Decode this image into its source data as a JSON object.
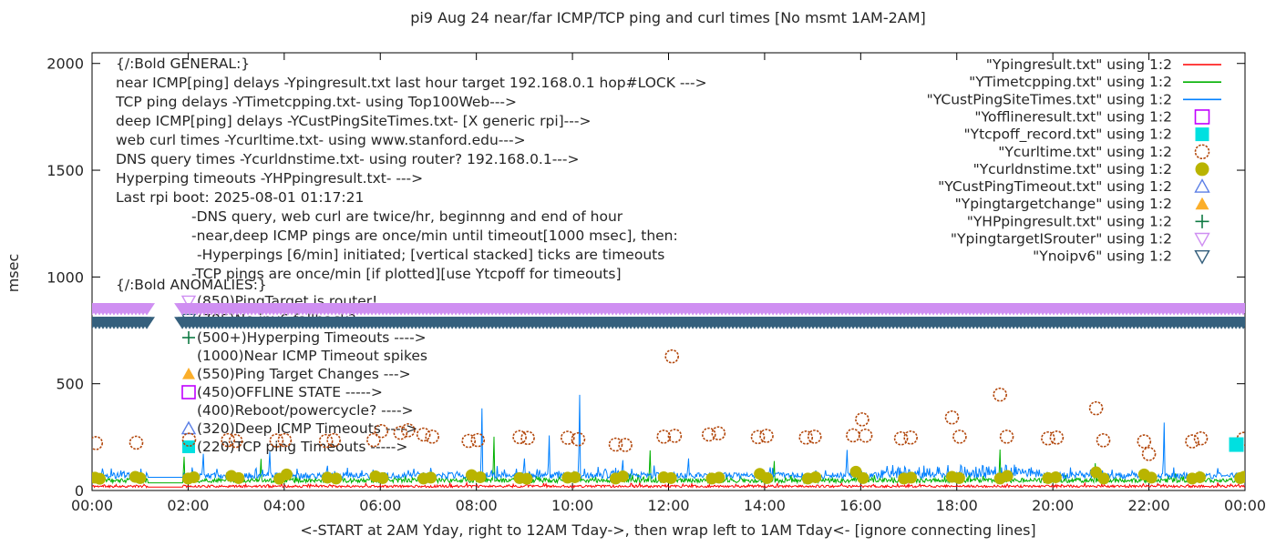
{
  "chart_data": {
    "type": "mixed-line-scatter",
    "title": "pi9 Aug 24  near/far ICMP/TCP ping and curl times [No msmt 1AM-2AM]",
    "xlabel": "<-START at 2AM Yday, right to 12AM Tday->, then wrap left to 1AM Tday<- [ignore connecting lines]",
    "ylabel": "msec",
    "x_range_hours": [
      0,
      24
    ],
    "y_range_msec": [
      0,
      2050
    ],
    "grid": false,
    "x_ticks": [
      {
        "hour": 0,
        "label": "00:00"
      },
      {
        "hour": 2,
        "label": "02:00"
      },
      {
        "hour": 4,
        "label": "04:00"
      },
      {
        "hour": 6,
        "label": "06:00"
      },
      {
        "hour": 8,
        "label": "08:00"
      },
      {
        "hour": 10,
        "label": "10:00"
      },
      {
        "hour": 12,
        "label": "12:00"
      },
      {
        "hour": 14,
        "label": "14:00"
      },
      {
        "hour": 16,
        "label": "16:00"
      },
      {
        "hour": 18,
        "label": "18:00"
      },
      {
        "hour": 20,
        "label": "20:00"
      },
      {
        "hour": 22,
        "label": "22:00"
      },
      {
        "hour": 24,
        "label": "00:00"
      }
    ],
    "y_ticks": [
      0,
      500,
      1000,
      1500,
      2000
    ],
    "no_measurement_window_hours": [
      1.15,
      1.9
    ],
    "legend_position": "top-right",
    "legend": [
      {
        "label": "\"Ypingresult.txt\" using 1:2",
        "marker": "line",
        "color": "#ff0000"
      },
      {
        "label": "\"YTimetcpping.txt\" using 1:2",
        "marker": "line",
        "color": "#00b000"
      },
      {
        "label": "\"YCustPingSiteTimes.txt\" using 1:2",
        "marker": "line",
        "color": "#0080ff"
      },
      {
        "label": "\"Yofflineresult.txt\" using 1:2",
        "marker": "square-open",
        "color": "#c000ff"
      },
      {
        "label": "\"Ytcpoff_record.txt\" using 1:2",
        "marker": "square-filled",
        "color": "#00e0e0"
      },
      {
        "label": "\"Ycurltime.txt\" using 1:2",
        "marker": "circle-open",
        "color": "#b2460a"
      },
      {
        "label": "\"Ycurldnstime.txt\" using 1:2",
        "marker": "circle-filled",
        "color": "#b9b400"
      },
      {
        "label": "\"YCustPingTimeout.txt\" using 1:2",
        "marker": "tri-up-open",
        "color": "#5b7fe6"
      },
      {
        "label": "\"Ypingtargetchange\" using 1:2",
        "marker": "tri-up-filled",
        "color": "#fbae2a"
      },
      {
        "label": "\"YHPpingresult.txt\" using 1:2",
        "marker": "plus",
        "color": "#0e7a43"
      },
      {
        "label": "\"YpingtargetISrouter\" using 1:2",
        "marker": "tri-down-open",
        "color": "#cf8ff2"
      },
      {
        "label": "\"Ynoipv6\" using 1:2",
        "marker": "tri-down-open",
        "color": "#35607d"
      }
    ],
    "annotations": {
      "general_header": "{/:Bold GENERAL:}",
      "general": [
        "near ICMP[ping] delays -Ypingresult.txt last hour target 192.168.0.1 hop#LOCK --->",
        "TCP ping delays -YTimetcpping.txt- using Top100Web--->",
        "deep ICMP[ping] delays -YCustPingSiteTimes.txt- [X generic rpi]--->",
        "web curl times -Ycurltime.txt- using www.stanford.edu--->",
        "DNS query times -Ycurldnstime.txt- using router? 192.168.0.1--->",
        "Hyperping timeouts -YHPpingresult.txt- --->",
        "Last rpi boot: 2025-08-01 01:17:21"
      ],
      "notes": [
        "-DNS query, web curl are twice/hr, beginnng and end of hour",
        "-near,deep ICMP pings are once/min until timeout[1000 msec], then:",
        " -Hyperpings [6/min] initiated; [vertical stacked] ticks are timeouts",
        "-TCP pings are once/min [if plotted][use Ytcpoff for timeouts]"
      ],
      "anomalies_header": "{/:Bold ANOMALIES:}",
      "anomalies": [
        {
          "marker": "tri-down-open",
          "color": "#cf8ff2",
          "text": "(850)PingTarget is router!"
        },
        {
          "marker": "tri-down-open",
          "color": "#35607d",
          "text": "(785)No ipv6 fallback?"
        },
        {
          "marker": "plus",
          "color": "#0e7a43",
          "text": "(500+)Hyperping Timeouts ---->"
        },
        {
          "marker": "none",
          "color": "",
          "text": "(1000)Near ICMP Timeout spikes"
        },
        {
          "marker": "tri-up-filled",
          "color": "#fbae2a",
          "text": "(550)Ping Target Changes --->"
        },
        {
          "marker": "square-open",
          "color": "#c000ff",
          "text": "(450)OFFLINE STATE ----->"
        },
        {
          "marker": "none",
          "color": "",
          "text": "(400)Reboot/powercycle? ---->"
        },
        {
          "marker": "tri-up-open",
          "color": "#5b7fe6",
          "text": "(320)Deep ICMP Timeouts ---->"
        },
        {
          "marker": "square-filled",
          "color": "#00e0e0",
          "text": "(220)TCP ping Timeouts ----->"
        }
      ]
    },
    "series": [
      {
        "name": "Ypingresult.txt",
        "type": "noisy-line",
        "color": "#ff0000",
        "seed": 11,
        "baseline_msec": 18,
        "noise_msec": 7,
        "gap_value_msec": 16,
        "spikes": []
      },
      {
        "name": "YTimetcpping.txt",
        "type": "noisy-line",
        "color": "#00b000",
        "seed": 23,
        "baseline_msec": 44,
        "noise_msec": 13,
        "gap_value_msec": 36,
        "spikes": [
          [
            1.92,
            158
          ],
          [
            3.52,
            148
          ],
          [
            8.36,
            252
          ],
          [
            11.62,
            188
          ],
          [
            14.2,
            138
          ],
          [
            18.9,
            192
          ],
          [
            20.88,
            128
          ]
        ]
      },
      {
        "name": "YCustPingSiteTimes.txt",
        "type": "noisy-line",
        "color": "#0080ff",
        "seed": 47,
        "baseline_msec": 66,
        "noise_msec": 18,
        "gap_value_msec": 62,
        "busy_window": [
          16.4,
          19.7,
          2.3
        ],
        "spikes": [
          [
            2.32,
            172
          ],
          [
            3.7,
            182
          ],
          [
            4.9,
            116
          ],
          [
            8.12,
            385
          ],
          [
            9.0,
            150
          ],
          [
            9.52,
            258
          ],
          [
            10.15,
            448
          ],
          [
            11.05,
            142
          ],
          [
            12.42,
            150
          ],
          [
            15.72,
            190
          ],
          [
            22.32,
            318
          ]
        ]
      },
      {
        "name": "Ycurltime.txt",
        "type": "scatter",
        "marker": "circle-open",
        "color": "#b2460a",
        "size": 7,
        "points": [
          [
            0.08,
            222
          ],
          [
            0.92,
            224
          ],
          [
            2.02,
            238
          ],
          [
            2.83,
            236
          ],
          [
            2.99,
            232
          ],
          [
            3.84,
            234
          ],
          [
            4.01,
            236
          ],
          [
            4.87,
            232
          ],
          [
            5.03,
            236
          ],
          [
            5.86,
            236
          ],
          [
            6.02,
            278
          ],
          [
            6.42,
            270
          ],
          [
            6.58,
            282
          ],
          [
            6.9,
            262
          ],
          [
            7.08,
            252
          ],
          [
            7.84,
            232
          ],
          [
            8.03,
            236
          ],
          [
            8.9,
            250
          ],
          [
            9.07,
            246
          ],
          [
            9.9,
            247
          ],
          [
            10.12,
            240
          ],
          [
            10.9,
            215
          ],
          [
            11.1,
            213
          ],
          [
            11.9,
            252
          ],
          [
            12.07,
            628
          ],
          [
            12.13,
            256
          ],
          [
            12.84,
            262
          ],
          [
            13.04,
            268
          ],
          [
            13.86,
            250
          ],
          [
            14.04,
            256
          ],
          [
            14.86,
            248
          ],
          [
            15.04,
            252
          ],
          [
            15.84,
            258
          ],
          [
            16.03,
            333
          ],
          [
            16.1,
            257
          ],
          [
            16.84,
            244
          ],
          [
            17.04,
            248
          ],
          [
            17.9,
            342
          ],
          [
            18.06,
            252
          ],
          [
            18.9,
            449
          ],
          [
            19.04,
            252
          ],
          [
            19.9,
            244
          ],
          [
            20.08,
            248
          ],
          [
            20.9,
            385
          ],
          [
            21.05,
            235
          ],
          [
            21.9,
            230
          ],
          [
            22.0,
            171
          ],
          [
            22.9,
            230
          ],
          [
            23.08,
            244
          ],
          [
            23.97,
            242
          ]
        ]
      },
      {
        "name": "Ycurldnstime.txt",
        "type": "scatter",
        "marker": "circle-filled",
        "color": "#b9b400",
        "size": 6.5,
        "points": [
          [
            0.06,
            60
          ],
          [
            0.16,
            55
          ],
          [
            0.9,
            64
          ],
          [
            1.0,
            58
          ],
          [
            2.0,
            56
          ],
          [
            2.12,
            62
          ],
          [
            2.9,
            68
          ],
          [
            3.05,
            58
          ],
          [
            3.9,
            55
          ],
          [
            4.05,
            75
          ],
          [
            4.9,
            60
          ],
          [
            5.08,
            56
          ],
          [
            5.9,
            66
          ],
          [
            6.05,
            58
          ],
          [
            6.9,
            56
          ],
          [
            7.05,
            60
          ],
          [
            7.9,
            72
          ],
          [
            8.08,
            62
          ],
          [
            8.9,
            58
          ],
          [
            9.05,
            55
          ],
          [
            9.9,
            60
          ],
          [
            10.05,
            62
          ],
          [
            10.9,
            56
          ],
          [
            11.05,
            66
          ],
          [
            11.9,
            62
          ],
          [
            12.05,
            58
          ],
          [
            12.9,
            56
          ],
          [
            13.05,
            60
          ],
          [
            13.9,
            78
          ],
          [
            14.05,
            58
          ],
          [
            14.9,
            56
          ],
          [
            15.06,
            62
          ],
          [
            15.9,
            88
          ],
          [
            16.05,
            58
          ],
          [
            16.9,
            56
          ],
          [
            17.05,
            60
          ],
          [
            17.9,
            64
          ],
          [
            18.05,
            58
          ],
          [
            18.9,
            56
          ],
          [
            19.05,
            68
          ],
          [
            19.9,
            58
          ],
          [
            20.06,
            62
          ],
          [
            20.9,
            85
          ],
          [
            21.06,
            56
          ],
          [
            21.9,
            75
          ],
          [
            22.05,
            60
          ],
          [
            22.9,
            56
          ],
          [
            23.06,
            62
          ],
          [
            23.9,
            58
          ],
          [
            23.98,
            64
          ]
        ]
      },
      {
        "name": "Ytcpoff_record.txt",
        "type": "scatter",
        "marker": "square-filled",
        "color": "#00e0e0",
        "size": 8,
        "points": [
          [
            23.82,
            215
          ]
        ]
      },
      {
        "name": "YpingtargetISrouter",
        "type": "band-of-down-triangles",
        "color": "#cf8ff2",
        "value_msec": 850,
        "segments_hours": [
          [
            0.0,
            1.16
          ],
          [
            1.88,
            24.0
          ]
        ]
      },
      {
        "name": "Ynoipv6",
        "type": "band-of-down-triangles",
        "color": "#35607d",
        "value_msec": 785,
        "segments_hours": [
          [
            0.0,
            1.16
          ],
          [
            1.88,
            24.0
          ]
        ]
      }
    ]
  }
}
